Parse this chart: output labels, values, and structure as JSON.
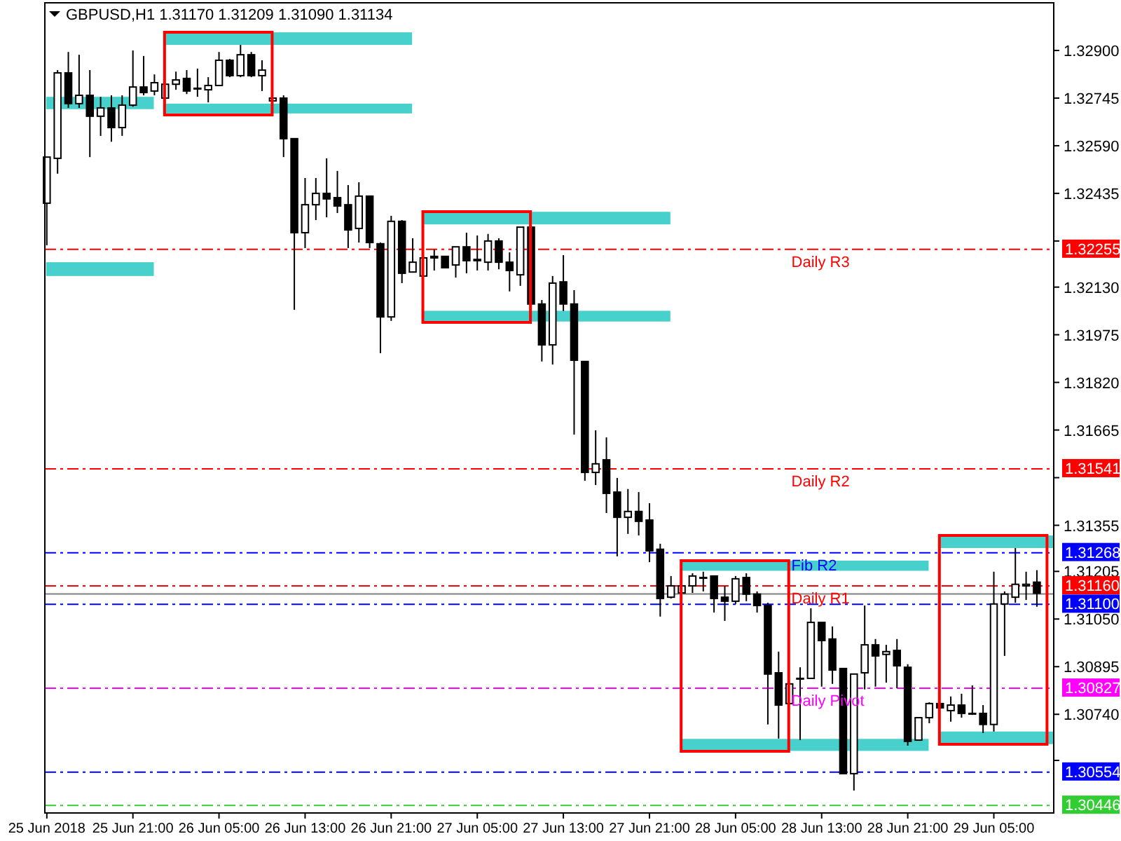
{
  "chart_data": {
    "type": "candlestick",
    "title": "GBPUSD,H1 1.31170 1.31209 1.31090 1.31134",
    "x": [
      "2018-06-25T13:00",
      "2018-06-25T14:00",
      "2018-06-25T15:00",
      "2018-06-25T16:00",
      "2018-06-25T17:00",
      "2018-06-25T18:00",
      "2018-06-25T19:00",
      "2018-06-25T20:00",
      "2018-06-25T21:00",
      "2018-06-25T22:00",
      "2018-06-25T23:00",
      "2018-06-26T00:00",
      "2018-06-26T01:00",
      "2018-06-26T02:00",
      "2018-06-26T03:00",
      "2018-06-26T04:00",
      "2018-06-26T05:00",
      "2018-06-26T06:00",
      "2018-06-26T07:00",
      "2018-06-26T08:00",
      "2018-06-26T09:00",
      "2018-06-26T10:00",
      "2018-06-26T11:00",
      "2018-06-26T12:00",
      "2018-06-26T13:00",
      "2018-06-26T14:00",
      "2018-06-26T15:00",
      "2018-06-26T16:00",
      "2018-06-26T17:00",
      "2018-06-26T18:00",
      "2018-06-26T19:00",
      "2018-06-26T20:00",
      "2018-06-26T21:00",
      "2018-06-26T22:00",
      "2018-06-26T23:00",
      "2018-06-27T00:00",
      "2018-06-27T01:00",
      "2018-06-27T02:00",
      "2018-06-27T03:00",
      "2018-06-27T04:00",
      "2018-06-27T05:00",
      "2018-06-27T06:00",
      "2018-06-27T07:00",
      "2018-06-27T08:00",
      "2018-06-27T09:00",
      "2018-06-27T10:00",
      "2018-06-27T11:00",
      "2018-06-27T12:00",
      "2018-06-27T13:00",
      "2018-06-27T14:00",
      "2018-06-27T15:00",
      "2018-06-27T16:00",
      "2018-06-27T17:00",
      "2018-06-27T18:00",
      "2018-06-27T19:00",
      "2018-06-27T20:00",
      "2018-06-27T21:00",
      "2018-06-27T22:00",
      "2018-06-27T23:00",
      "2018-06-28T00:00",
      "2018-06-28T01:00",
      "2018-06-28T02:00",
      "2018-06-28T03:00",
      "2018-06-28T04:00",
      "2018-06-28T05:00",
      "2018-06-28T06:00",
      "2018-06-28T07:00",
      "2018-06-28T08:00",
      "2018-06-28T09:00",
      "2018-06-28T10:00",
      "2018-06-28T11:00",
      "2018-06-28T12:00",
      "2018-06-28T13:00",
      "2018-06-28T14:00",
      "2018-06-28T15:00",
      "2018-06-28T16:00",
      "2018-06-28T17:00",
      "2018-06-28T18:00",
      "2018-06-28T19:00",
      "2018-06-28T20:00",
      "2018-06-28T21:00",
      "2018-06-28T22:00",
      "2018-06-28T23:00",
      "2018-06-29T00:00",
      "2018-06-29T01:00",
      "2018-06-29T02:00",
      "2018-06-29T03:00",
      "2018-06-29T04:00",
      "2018-06-29T05:00",
      "2018-06-29T06:00",
      "2018-06-29T07:00",
      "2018-06-29T08:00",
      "2018-06-29T09:00"
    ],
    "ohlc": [
      [
        1.32403,
        1.32553,
        1.32266,
        1.32553
      ],
      [
        1.32549,
        1.32836,
        1.32499,
        1.32827
      ],
      [
        1.32827,
        1.32895,
        1.32713,
        1.32727
      ],
      [
        1.32727,
        1.32886,
        1.32713,
        1.32754
      ],
      [
        1.32754,
        1.32836,
        1.32553,
        1.32686
      ],
      [
        1.32686,
        1.32749,
        1.32622,
        1.32713
      ],
      [
        1.32713,
        1.32754,
        1.32603,
        1.32649
      ],
      [
        1.32649,
        1.32754,
        1.32622,
        1.32722
      ],
      [
        1.32722,
        1.329,
        1.32717,
        1.32781
      ],
      [
        1.32781,
        1.32882,
        1.32754,
        1.32763
      ],
      [
        1.32768,
        1.32822,
        1.32754,
        1.32795
      ],
      [
        1.32745,
        1.3279,
        1.32745,
        1.3279
      ],
      [
        1.3279,
        1.32831,
        1.32772,
        1.32804
      ],
      [
        1.32809,
        1.32836,
        1.32758,
        1.32768
      ],
      [
        1.32777,
        1.32841,
        1.32749,
        1.32777
      ],
      [
        1.32772,
        1.32813,
        1.32731,
        1.32786
      ],
      [
        1.32786,
        1.32895,
        1.32786,
        1.32868
      ],
      [
        1.32868,
        1.32872,
        1.32813,
        1.32818
      ],
      [
        1.32818,
        1.32918,
        1.32813,
        1.32886
      ],
      [
        1.32886,
        1.32895,
        1.32813,
        1.32818
      ],
      [
        1.32818,
        1.32868,
        1.32768,
        1.32836
      ],
      [
        1.32736,
        1.32745,
        1.32736,
        1.32745
      ],
      [
        1.32745,
        1.32754,
        1.32553,
        1.32613
      ],
      [
        1.32613,
        1.32613,
        1.32056,
        1.32307
      ],
      [
        1.32307,
        1.32485,
        1.32257,
        1.32398
      ],
      [
        1.32398,
        1.32485,
        1.32348,
        1.32435
      ],
      [
        1.32435,
        1.32549,
        1.32357,
        1.32417
      ],
      [
        1.32421,
        1.32508,
        1.32371,
        1.32394
      ],
      [
        1.32398,
        1.32462,
        1.32257,
        1.32316
      ],
      [
        1.32321,
        1.32471,
        1.32275,
        1.32426
      ],
      [
        1.32426,
        1.32426,
        1.32257,
        1.32275
      ],
      [
        1.32271,
        1.32275,
        1.31915,
        1.32033
      ],
      [
        1.32033,
        1.32362,
        1.3202,
        1.32344
      ],
      [
        1.32344,
        1.32348,
        1.32143,
        1.32175
      ],
      [
        1.32179,
        1.32289,
        1.32179,
        1.32211
      ],
      [
        1.32166,
        1.3223,
        1.32166,
        1.32225
      ],
      [
        1.3223,
        1.32252,
        1.32184,
        1.32225
      ],
      [
        1.3223,
        1.3223,
        1.32193,
        1.32193
      ],
      [
        1.32202,
        1.32261,
        1.32161,
        1.32261
      ],
      [
        1.32261,
        1.32307,
        1.32175,
        1.32216
      ],
      [
        1.3222,
        1.32298,
        1.32184,
        1.32216
      ],
      [
        1.32211,
        1.32303,
        1.32184,
        1.3228
      ],
      [
        1.3228,
        1.32289,
        1.32188,
        1.32211
      ],
      [
        1.32211,
        1.32243,
        1.32116,
        1.32184
      ],
      [
        1.3217,
        1.32325,
        1.32134,
        1.32325
      ],
      [
        1.32325,
        1.32325,
        1.32075,
        1.32075
      ],
      [
        1.32075,
        1.32088,
        1.31888,
        1.31942
      ],
      [
        1.31942,
        1.32166,
        1.31878,
        1.32143
      ],
      [
        1.32147,
        1.32234,
        1.32052,
        1.32075
      ],
      [
        1.32075,
        1.3212,
        1.3165,
        1.31892
      ],
      [
        1.31888,
        1.31888,
        1.315,
        1.31527
      ],
      [
        1.31527,
        1.31664,
        1.31486,
        1.31555
      ],
      [
        1.31568,
        1.31641,
        1.31395,
        1.31459
      ],
      [
        1.31463,
        1.31509,
        1.31254,
        1.31381
      ],
      [
        1.31381,
        1.31473,
        1.31327,
        1.314
      ],
      [
        1.314,
        1.31463,
        1.31322,
        1.31368
      ],
      [
        1.31372,
        1.31427,
        1.31235,
        1.31272
      ],
      [
        1.31277,
        1.31295,
        1.31058,
        1.31117
      ],
      [
        1.31121,
        1.3119,
        1.31117,
        1.31158
      ],
      [
        1.31135,
        1.31163,
        1.31135,
        1.31158
      ],
      [
        1.31158,
        1.31199,
        1.31135,
        1.3119
      ],
      [
        1.31185,
        1.31204,
        1.3114,
        1.31185
      ],
      [
        1.3119,
        1.3119,
        1.31071,
        1.31117
      ],
      [
        1.31121,
        1.31158,
        1.31044,
        1.31108
      ],
      [
        1.31108,
        1.3119,
        1.31099,
        1.31181
      ],
      [
        1.31185,
        1.31199,
        1.31108,
        1.31131
      ],
      [
        1.31131,
        1.3114,
        1.31071,
        1.31094
      ],
      [
        1.31094,
        1.31103,
        1.30707,
        1.30871
      ],
      [
        1.30875,
        1.30944,
        1.30661,
        1.3077
      ],
      [
        1.30775,
        1.30839,
        1.30775,
        1.30839
      ],
      [
        1.30857,
        1.30893,
        1.30656,
        1.30857
      ],
      [
        1.30857,
        1.31085,
        1.30857,
        1.31039
      ],
      [
        1.31039,
        1.31039,
        1.3083,
        1.3098
      ],
      [
        1.30985,
        1.31026,
        1.30839,
        1.30884
      ],
      [
        1.30889,
        1.30889,
        1.30547,
        1.30547
      ],
      [
        1.30547,
        1.30871,
        1.30492,
        1.30871
      ],
      [
        1.30875,
        1.31094,
        1.30821,
        1.30966
      ],
      [
        1.30966,
        1.30985,
        1.3083,
        1.3093
      ],
      [
        1.30935,
        1.30966,
        1.30843,
        1.30944
      ],
      [
        1.30948,
        1.30985,
        1.30825,
        1.30898
      ],
      [
        1.30893,
        1.30903,
        1.30638,
        1.30652
      ],
      [
        1.30656,
        1.30729,
        1.30656,
        1.30729
      ],
      [
        1.30729,
        1.30779,
        1.30711,
        1.30775
      ],
      [
        1.30775,
        1.30775,
        1.30761,
        1.30761
      ],
      [
        1.30752,
        1.30798,
        1.30716,
        1.3077
      ],
      [
        1.3077,
        1.30807,
        1.30729,
        1.30743
      ],
      [
        1.30743,
        1.30834,
        1.30738,
        1.30743
      ],
      [
        1.30743,
        1.3077,
        1.30679,
        1.30707
      ],
      [
        1.30707,
        1.31204,
        1.30684,
        1.31099
      ],
      [
        1.31099,
        1.3114,
        1.3093,
        1.31131
      ],
      [
        1.31121,
        1.31281,
        1.31103,
        1.31163
      ],
      [
        1.31158,
        1.31204,
        1.31112,
        1.31163
      ],
      [
        1.3117,
        1.31209,
        1.3109,
        1.31134
      ]
    ],
    "xlim": [
      "2018-06-25T12:49",
      "2018-06-29T10:34"
    ],
    "xticks": [
      {
        "value": "2018-06-25T13:00",
        "label": "25 Jun 2018"
      },
      {
        "value": "2018-06-25T21:00",
        "label": "25 Jun 21:00"
      },
      {
        "value": "2018-06-26T05:00",
        "label": "26 Jun 05:00"
      },
      {
        "value": "2018-06-26T13:00",
        "label": "26 Jun 13:00"
      },
      {
        "value": "2018-06-26T21:00",
        "label": "26 Jun 21:00"
      },
      {
        "value": "2018-06-27T05:00",
        "label": "27 Jun 05:00"
      },
      {
        "value": "2018-06-27T13:00",
        "label": "27 Jun 13:00"
      },
      {
        "value": "2018-06-27T21:00",
        "label": "27 Jun 21:00"
      },
      {
        "value": "2018-06-28T05:00",
        "label": "28 Jun 05:00"
      },
      {
        "value": "2018-06-28T13:00",
        "label": "28 Jun 13:00"
      },
      {
        "value": "2018-06-28T21:00",
        "label": "28 Jun 21:00"
      },
      {
        "value": "2018-06-29T05:00",
        "label": "29 Jun 05:00"
      }
    ],
    "ylim": [
      1.30419,
      1.33055
    ],
    "yticks": [
      {
        "value": 1.329,
        "label": "1.32900"
      },
      {
        "value": 1.32745,
        "label": "1.32745"
      },
      {
        "value": 1.3259,
        "label": "1.32590"
      },
      {
        "value": 1.32435,
        "label": "1.32435"
      },
      {
        "value": 1.3228,
        "label": null
      },
      {
        "value": 1.3213,
        "label": "1.32130"
      },
      {
        "value": 1.31975,
        "label": "1.31975"
      },
      {
        "value": 1.3182,
        "label": "1.31820"
      },
      {
        "value": 1.31665,
        "label": "1.31665"
      },
      {
        "value": 1.3151,
        "label": null
      },
      {
        "value": 1.31355,
        "label": "1.31355"
      },
      {
        "value": 1.31205,
        "label": "1.31205"
      },
      {
        "value": 1.3105,
        "label": "1.31050"
      },
      {
        "value": 1.30895,
        "label": "1.30895"
      },
      {
        "value": 1.3074,
        "label": "1.30740"
      },
      {
        "value": 1.3059,
        "label": null
      }
    ],
    "bands": [
      {
        "axis": "y",
        "from": 1.32709,
        "to": 1.32749,
        "color": "#48d1cc"
      },
      {
        "axis": "y",
        "from": 1.32166,
        "to": 1.32211,
        "color": "#48d1cc"
      },
      {
        "axis": "y",
        "from": 1.32918,
        "to": 1.32959,
        "color": "#48d1cc"
      },
      {
        "axis": "y",
        "from": 1.32695,
        "to": 1.32727,
        "color": "#48d1cc"
      },
      {
        "axis": "y",
        "from": 1.32334,
        "to": 1.32375,
        "color": "#48d1cc"
      },
      {
        "axis": "y",
        "from": 1.32018,
        "to": 1.32053,
        "color": "#48d1cc"
      },
      {
        "axis": "y",
        "from": 1.31207,
        "to": 1.3124,
        "color": "#48d1cc"
      },
      {
        "axis": "y",
        "from": 1.30621,
        "to": 1.3066,
        "color": "#48d1cc"
      },
      {
        "axis": "y",
        "from": 1.31281,
        "to": 1.31322,
        "color": "#48d1cc"
      },
      {
        "axis": "y",
        "from": 1.30643,
        "to": 1.30684,
        "color": "#48d1cc"
      }
    ],
    "ref_lines": [
      {
        "axis": "y",
        "value": 1.32255,
        "label": "1.32255",
        "color": "#ff0000",
        "line_style": "dashed"
      },
      {
        "axis": "y",
        "value": 1.31541,
        "label": "1.31541",
        "color": "#ff0000",
        "line_style": "dashed"
      },
      {
        "axis": "y",
        "value": 1.31268,
        "label": "1.31268",
        "color": "#0000ff",
        "line_style": "dashed"
      },
      {
        "axis": "y",
        "value": 1.3116,
        "label": "1.31160",
        "color": "#ff0000",
        "line_style": "dashed"
      },
      {
        "axis": "y",
        "value": 1.31134,
        "color": "#808080",
        "line_style": "solid"
      },
      {
        "axis": "y",
        "value": 1.311,
        "label": "1.31100",
        "color": "#0000ff",
        "line_style": "dashed"
      },
      {
        "axis": "y",
        "value": 1.30827,
        "label": "1.30827",
        "color": "#ff00ff",
        "line_style": "dashed"
      },
      {
        "axis": "y",
        "value": 1.30554,
        "label": "1.30554",
        "color": "#0000ff",
        "line_style": "dashed"
      },
      {
        "axis": "y",
        "value": 1.30446,
        "label": "1.30446",
        "color": "#32cd32",
        "line_style": "dashed"
      }
    ],
    "annotations": [
      {
        "text": "Daily R3",
        "y": 1.32255
      },
      {
        "text": "Daily R2",
        "y": 1.31541
      },
      {
        "text": "Fib R2",
        "y": 1.31268
      },
      {
        "text": "Daily R1",
        "y": 1.3116
      },
      {
        "text": "Daily Pivot",
        "y": 1.30827
      }
    ]
  }
}
